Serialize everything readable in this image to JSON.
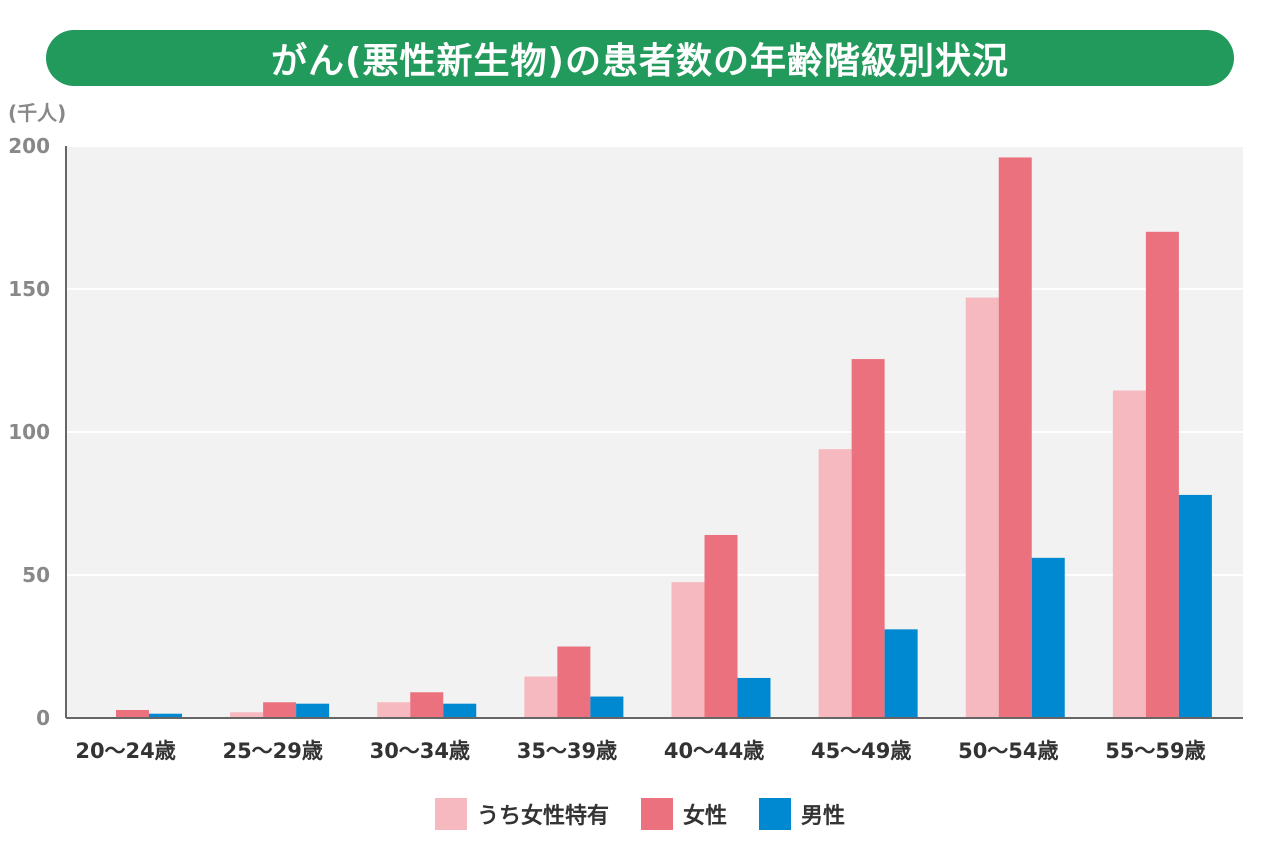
{
  "title": "がん(悪性新生物)の患者数の年齢階級別状況",
  "chart_data": {
    "type": "bar",
    "title": "がん(悪性新生物)の患者数の年齢階級別状況",
    "ylabel": "(千人)",
    "xlabel": "",
    "ylim": [
      0,
      200
    ],
    "yticks": [
      "200",
      "150",
      "100",
      "50",
      "0"
    ],
    "categories": [
      "20〜24歳",
      "25〜29歳",
      "30〜34歳",
      "35〜39歳",
      "40〜44歳",
      "45〜49歳",
      "50〜54歳",
      "55〜59歳"
    ],
    "series": [
      {
        "name": "うち女性特有",
        "color": "#f5b9bf",
        "values": [
          0,
          2,
          5.5,
          14.5,
          47.5,
          94,
          147,
          114.5
        ]
      },
      {
        "name": "女性",
        "color": "#ec717e",
        "values": [
          2.8,
          5.5,
          9,
          25,
          64,
          125.5,
          196,
          170
        ]
      },
      {
        "name": "男性",
        "color": "#0088d0",
        "values": [
          1.5,
          5,
          5,
          7.5,
          14,
          31,
          56,
          78
        ]
      }
    ],
    "grid": true,
    "legend": "bottom"
  }
}
